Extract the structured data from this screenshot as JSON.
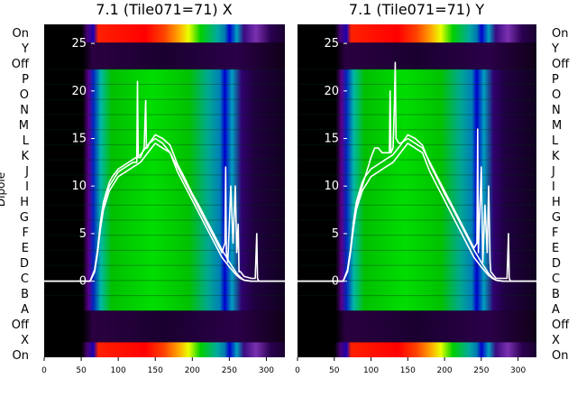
{
  "chart_data": [
    {
      "type": "line",
      "title": "7.1 (Tile071=71) X",
      "ylabel": "Dipole",
      "dipole_labels": [
        "On",
        "Y",
        "Off",
        "P",
        "O",
        "N",
        "M",
        "L",
        "K",
        "J",
        "I",
        "H",
        "G",
        "F",
        "E",
        "D",
        "C",
        "B",
        "A",
        "Off",
        "X",
        "On"
      ],
      "xlim": [
        0,
        325
      ],
      "ylim": [
        -8,
        27
      ],
      "xticks": [
        0,
        50,
        100,
        150,
        200,
        250,
        300
      ],
      "yticks": [
        0,
        5,
        10,
        15,
        20,
        25
      ],
      "grid": false,
      "colormap": "nipy_spectral",
      "series": [
        {
          "x": [
            0,
            55,
            62,
            68,
            72,
            76,
            80,
            84,
            88,
            92,
            96,
            100,
            110,
            120,
            125,
            126,
            127,
            130,
            135,
            137,
            138,
            139,
            142,
            150,
            160,
            165,
            170,
            180,
            190,
            200,
            210,
            220,
            230,
            240,
            244,
            245,
            246,
            248,
            252,
            255,
            258,
            260,
            262,
            263,
            265,
            270,
            280,
            285,
            287,
            288,
            290,
            300,
            310,
            320,
            325
          ],
          "y": [
            0,
            0,
            0,
            1,
            3,
            6,
            8,
            9,
            10,
            10.5,
            11,
            11.5,
            12,
            12.5,
            12.5,
            21,
            13,
            13,
            14,
            19,
            14,
            14,
            14.5,
            15,
            14.5,
            14,
            13.5,
            12,
            10.5,
            9,
            7.5,
            6,
            4.5,
            3,
            4,
            12,
            3,
            2,
            10,
            4,
            10,
            3,
            6,
            1,
            1,
            0.5,
            0.3,
            0.3,
            5,
            0.3,
            0,
            0,
            0,
            0,
            0
          ]
        },
        {
          "x": [
            0,
            55,
            62,
            68,
            72,
            76,
            80,
            84,
            88,
            92,
            96,
            100,
            110,
            120,
            130,
            140,
            150,
            160,
            170,
            180,
            190,
            200,
            210,
            220,
            230,
            240,
            250,
            260,
            265,
            270,
            280,
            300,
            325
          ],
          "y": [
            0,
            0,
            0,
            1,
            3,
            5.5,
            7.5,
            8.5,
            9.5,
            10,
            10.5,
            11,
            11.5,
            12,
            12.5,
            13.5,
            14.5,
            14,
            13.5,
            11.5,
            10,
            8.5,
            7,
            5.5,
            4,
            2.5,
            1.5,
            0.6,
            0.3,
            0.1,
            0,
            0,
            0
          ]
        },
        {
          "x": [
            0,
            55,
            62,
            68,
            72,
            76,
            80,
            84,
            88,
            92,
            96,
            100,
            110,
            120,
            130,
            140,
            150,
            160,
            170,
            180,
            190,
            200,
            210,
            220,
            230,
            240,
            250,
            260,
            265,
            270,
            280,
            300,
            325
          ],
          "y": [
            0,
            0,
            0,
            1.2,
            3.3,
            6.2,
            8.3,
            9.4,
            10.4,
            11,
            11.4,
            11.8,
            12.3,
            12.8,
            13.3,
            14.3,
            15.4,
            15,
            14.3,
            12.3,
            10.8,
            9.2,
            7.8,
            6.3,
            4.8,
            3.3,
            2,
            0.8,
            0.4,
            0.1,
            0,
            0,
            0
          ]
        }
      ]
    },
    {
      "type": "line",
      "title": "7.1 (Tile071=71) Y",
      "dipole_labels": [
        "On",
        "Y",
        "Off",
        "P",
        "O",
        "N",
        "M",
        "L",
        "K",
        "J",
        "I",
        "H",
        "G",
        "F",
        "E",
        "D",
        "C",
        "B",
        "A",
        "Off",
        "X",
        "On"
      ],
      "xlim": [
        0,
        325
      ],
      "ylim": [
        -8,
        27
      ],
      "xticks": [
        0,
        50,
        100,
        150,
        200,
        250,
        300
      ],
      "yticks": [
        0,
        5,
        10,
        15,
        20,
        25
      ],
      "grid": false,
      "colormap": "nipy_spectral",
      "series": [
        {
          "x": [
            0,
            55,
            62,
            68,
            72,
            76,
            80,
            84,
            88,
            92,
            96,
            100,
            105,
            110,
            115,
            120,
            125,
            126,
            127,
            130,
            132,
            133,
            134,
            138,
            140,
            150,
            160,
            170,
            180,
            190,
            200,
            210,
            220,
            230,
            240,
            244,
            245,
            246,
            250,
            252,
            255,
            258,
            260,
            262,
            263,
            265,
            270,
            280,
            285,
            287,
            288,
            290,
            300,
            310,
            325
          ],
          "y": [
            0,
            0,
            0,
            1,
            3,
            6,
            8,
            9,
            10,
            11,
            12,
            13,
            14,
            14,
            13.5,
            13.5,
            13.5,
            20,
            13.5,
            14,
            19,
            23,
            15,
            14.5,
            14.5,
            15,
            14.5,
            14,
            12.5,
            11,
            9.5,
            8,
            6.5,
            5,
            3.5,
            4,
            16,
            3,
            12,
            2,
            8,
            3,
            10,
            2,
            1,
            0.8,
            0.3,
            0.3,
            0.3,
            5,
            0.3,
            0,
            0,
            0,
            0
          ]
        },
        {
          "x": [
            0,
            55,
            62,
            68,
            72,
            76,
            80,
            84,
            88,
            92,
            96,
            100,
            110,
            120,
            130,
            140,
            150,
            160,
            170,
            180,
            190,
            200,
            210,
            220,
            230,
            240,
            250,
            260,
            265,
            270,
            280,
            300,
            325
          ],
          "y": [
            0,
            0,
            0,
            1,
            3,
            5.5,
            7.5,
            8.5,
            9.5,
            10,
            10.5,
            11,
            11.5,
            12,
            12.5,
            13.5,
            14.5,
            14,
            13.5,
            11.5,
            10,
            8.5,
            7,
            5.5,
            4,
            2.5,
            1.5,
            0.6,
            0.3,
            0.1,
            0,
            0,
            0
          ]
        },
        {
          "x": [
            0,
            55,
            62,
            68,
            72,
            76,
            80,
            84,
            88,
            92,
            96,
            100,
            110,
            120,
            130,
            140,
            150,
            160,
            170,
            180,
            190,
            200,
            210,
            220,
            230,
            240,
            250,
            260,
            265,
            270,
            280,
            300,
            325
          ],
          "y": [
            0,
            0,
            0,
            1.2,
            3.3,
            6.2,
            8.3,
            9.4,
            10.4,
            11,
            11.4,
            11.8,
            12.3,
            12.8,
            13.3,
            14.3,
            15.4,
            15,
            14.3,
            12.3,
            10.8,
            9.2,
            7.8,
            6.3,
            4.8,
            3.3,
            2,
            0.8,
            0.4,
            0.1,
            0,
            0,
            0
          ]
        }
      ]
    }
  ]
}
